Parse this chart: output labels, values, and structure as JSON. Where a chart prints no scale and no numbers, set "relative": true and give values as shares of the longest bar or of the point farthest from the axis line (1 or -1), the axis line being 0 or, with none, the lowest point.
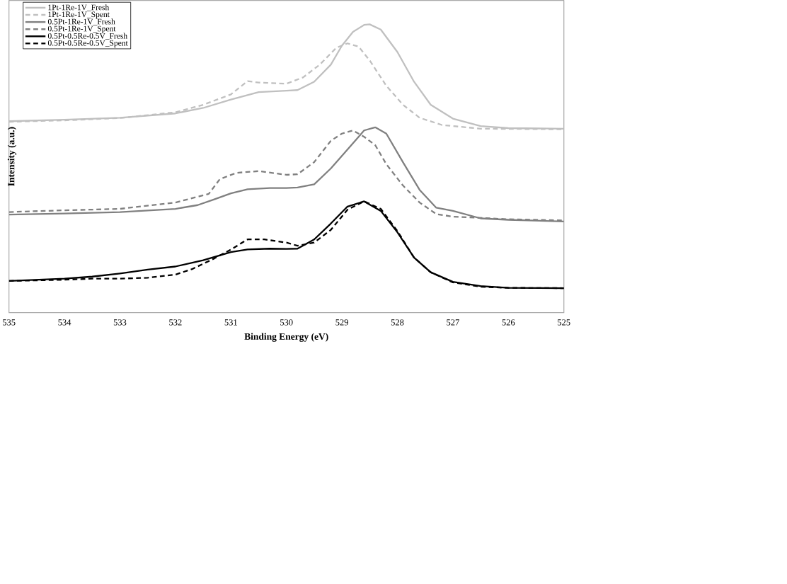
{
  "chart_data": {
    "type": "line",
    "relative": true,
    "xlabel": "Binding Energy (eV)",
    "ylabel": "Intensity (a.u.)",
    "xlim": [
      535,
      525
    ],
    "xticks": [
      535,
      534,
      533,
      532,
      531,
      530,
      529,
      528,
      527,
      526,
      525
    ],
    "grid": false,
    "legend": "top left",
    "marker": "none",
    "series": [
      {
        "name": "1Pt-1Re-1V_Fresh",
        "color": "#c0c0c0",
        "line_style": "solid",
        "x": [
          535,
          534,
          533,
          532,
          531.5,
          531,
          530.5,
          530,
          529.8,
          529.5,
          529.2,
          529,
          528.8,
          528.6,
          528.5,
          528.3,
          528,
          527.7,
          527.4,
          527,
          526.5,
          526,
          525
        ],
        "values": [
          0.664,
          0.669,
          0.676,
          0.691,
          0.71,
          0.739,
          0.765,
          0.77,
          0.772,
          0.801,
          0.86,
          0.926,
          0.974,
          0.998,
          1.0,
          0.982,
          0.904,
          0.801,
          0.721,
          0.673,
          0.647,
          0.64,
          0.638
        ]
      },
      {
        "name": "1Pt-1Re-1V_Spent",
        "color": "#c0c0c0",
        "line_style": "dashed",
        "x": [
          535,
          534,
          533,
          532,
          531.5,
          531,
          530.7,
          530.5,
          530,
          529.7,
          529.4,
          529.1,
          528.9,
          528.7,
          528.5,
          528.2,
          527.9,
          527.6,
          527.2,
          526.5,
          525
        ],
        "values": [
          0.662,
          0.667,
          0.675,
          0.695,
          0.721,
          0.757,
          0.803,
          0.798,
          0.794,
          0.816,
          0.86,
          0.919,
          0.934,
          0.923,
          0.875,
          0.787,
          0.721,
          0.676,
          0.651,
          0.638,
          0.636
        ]
      },
      {
        "name": "0.5Pt-1Re-1V_Fresh",
        "color": "#808080",
        "line_style": "solid",
        "x": [
          535,
          534,
          533,
          532,
          531.6,
          531.3,
          531,
          530.7,
          530.3,
          530,
          529.8,
          529.5,
          529.2,
          528.9,
          528.6,
          528.4,
          528.2,
          527.9,
          527.6,
          527.3,
          527,
          526.5,
          526,
          525
        ],
        "values": [
          0.34,
          0.344,
          0.349,
          0.36,
          0.373,
          0.393,
          0.414,
          0.428,
          0.432,
          0.432,
          0.434,
          0.445,
          0.5,
          0.566,
          0.632,
          0.643,
          0.621,
          0.522,
          0.426,
          0.364,
          0.353,
          0.327,
          0.322,
          0.316
        ]
      },
      {
        "name": "0.5Pt-1Re-1V_Spent",
        "color": "#808080",
        "line_style": "dashed",
        "x": [
          535,
          534,
          533,
          532,
          531.4,
          531.2,
          530.9,
          530.5,
          530,
          529.8,
          529.5,
          529.2,
          529,
          528.8,
          528.6,
          528.4,
          528.2,
          527.9,
          527.6,
          527.3,
          527,
          526,
          525
        ],
        "values": [
          0.349,
          0.355,
          0.36,
          0.382,
          0.412,
          0.463,
          0.485,
          0.491,
          0.478,
          0.48,
          0.522,
          0.596,
          0.621,
          0.632,
          0.61,
          0.581,
          0.515,
          0.441,
          0.382,
          0.342,
          0.333,
          0.324,
          0.32
        ]
      },
      {
        "name": "0.5Pt-0.5Re-0.5V_Fresh",
        "color": "#000000",
        "line_style": "solid",
        "x": [
          535,
          534,
          533.5,
          533,
          532.5,
          532,
          531.5,
          531,
          530.7,
          530.3,
          530,
          529.8,
          529.5,
          529.2,
          528.9,
          528.6,
          528.3,
          528,
          527.7,
          527.4,
          527,
          526.5,
          526,
          525
        ],
        "values": [
          0.11,
          0.118,
          0.125,
          0.136,
          0.149,
          0.16,
          0.182,
          0.21,
          0.219,
          0.222,
          0.221,
          0.222,
          0.254,
          0.309,
          0.368,
          0.386,
          0.353,
          0.279,
          0.191,
          0.14,
          0.107,
          0.092,
          0.086,
          0.085
        ]
      },
      {
        "name": "0.5Pt-0.5Re-0.5V_Spent",
        "color": "#000000",
        "line_style": "dashed",
        "x": [
          535,
          534,
          533.5,
          533,
          532.5,
          532,
          531.7,
          531.3,
          531,
          530.7,
          530.4,
          530,
          529.8,
          529.5,
          529.2,
          528.9,
          528.6,
          528.3,
          528,
          527.7,
          527.4,
          527,
          526.5,
          526,
          525
        ],
        "values": [
          0.11,
          0.114,
          0.118,
          0.118,
          0.121,
          0.132,
          0.151,
          0.188,
          0.219,
          0.254,
          0.254,
          0.243,
          0.232,
          0.243,
          0.287,
          0.357,
          0.386,
          0.36,
          0.283,
          0.191,
          0.14,
          0.105,
          0.09,
          0.086,
          0.085
        ]
      }
    ]
  }
}
